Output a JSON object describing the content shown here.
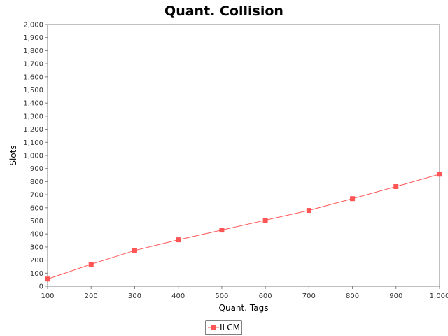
{
  "chart_data": {
    "type": "line",
    "title": "Quant. Collision",
    "xlabel": "Quant. Tags",
    "ylabel": "Slots",
    "x": [
      100,
      200,
      300,
      400,
      500,
      600,
      700,
      800,
      900,
      1000
    ],
    "xlim": [
      100,
      1000
    ],
    "ylim": [
      0,
      2000
    ],
    "x_ticks": [
      "100",
      "200",
      "300",
      "400",
      "500",
      "600",
      "700",
      "800",
      "900",
      "1,000"
    ],
    "y_ticks": [
      "0",
      "100",
      "200",
      "300",
      "400",
      "500",
      "600",
      "700",
      "800",
      "900",
      "1,000",
      "1,100",
      "1,200",
      "1,300",
      "1,400",
      "1,500",
      "1,600",
      "1,700",
      "1,800",
      "1,900",
      "2,000"
    ],
    "grid": false,
    "legend_position": "bottom-center",
    "series": [
      {
        "name": "ILCM",
        "color": "#ff5555",
        "marker": "square",
        "values": [
          55,
          168,
          273,
          355,
          430,
          505,
          580,
          670,
          762,
          857
        ]
      }
    ]
  }
}
